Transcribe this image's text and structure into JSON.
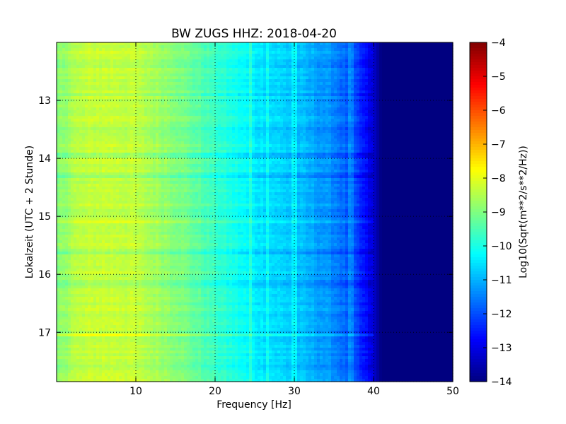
{
  "chart_data": {
    "type": "heatmap",
    "title": "BW ZUGS HHZ: 2018-04-20",
    "xlabel": "Frequency [Hz]",
    "ylabel": "Lokalzeit (UTC + 2 Stunde)",
    "xlim": [
      0,
      50
    ],
    "ylim": [
      12.0,
      17.85
    ],
    "y_inverted": true,
    "x_ticks": [
      10,
      20,
      30,
      40,
      50
    ],
    "y_ticks": [
      13,
      14,
      15,
      16,
      17
    ],
    "grid": true,
    "colormap": "jet",
    "colorbar": {
      "label": "Log10(Sqrt(m**2/s**2/Hz))",
      "range": [
        -14,
        -4
      ],
      "ticks": [
        -4,
        -5,
        -6,
        -7,
        -8,
        -9,
        -10,
        -11,
        -12,
        -13,
        -14
      ]
    },
    "spectral_profile": {
      "frequency_hz": [
        0,
        2,
        5,
        8,
        10,
        15,
        20,
        25,
        30,
        35,
        38,
        40,
        41,
        50
      ],
      "log10_amplitude": [
        -9.0,
        -8.5,
        -8.3,
        -8.3,
        -8.4,
        -8.9,
        -9.7,
        -10.4,
        -10.8,
        -11.4,
        -12.2,
        -13.2,
        -14.0,
        -14.0
      ]
    },
    "horizontal_features": [
      {
        "time": 15.1,
        "delta": 0.5
      },
      {
        "time": 12.9,
        "delta": -0.4
      },
      {
        "time": 13.5,
        "delta": -0.35
      },
      {
        "time": 13.95,
        "delta": -0.3
      },
      {
        "time": 14.3,
        "delta": -0.3
      },
      {
        "time": 16.15,
        "delta": -0.4
      },
      {
        "time": 17.05,
        "delta": 0.35
      },
      {
        "time": 12.4,
        "delta": -0.25
      },
      {
        "time": 15.6,
        "delta": -0.25
      }
    ],
    "vertical_features_hz": [
      24.5,
      26.5,
      30.0,
      37.2
    ]
  }
}
